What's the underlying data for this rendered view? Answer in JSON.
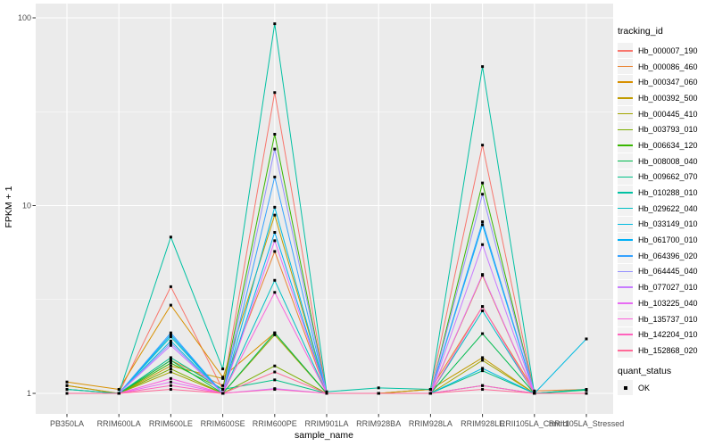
{
  "chart_data": {
    "type": "line",
    "title": "",
    "panel_background": "#EBEBEB",
    "grid_color": "#FFFFFF",
    "point_shape": "filled-square",
    "point_color": "#000000",
    "legend_position": "right",
    "x_axis": {
      "title": "sample_name",
      "categories": [
        "PB350LA",
        "RRIM600LA",
        "RRIM600LE",
        "RRIM600SE",
        "RRIM600PE",
        "RRIM901LA",
        "RRIM928BA",
        "RRIM928LA",
        "RRIM928LE",
        "RRII105LA_Control",
        "RRII105LA_Stressed"
      ]
    },
    "y_axis": {
      "title": "FPKM + 1",
      "scale": "log10",
      "ticks": [
        1,
        10,
        100
      ],
      "tick_labels": [
        "1",
        "10",
        "100"
      ],
      "minor_ticks": [
        3.162,
        31.62
      ],
      "range_approx": [
        0.78,
        119
      ]
    },
    "series": [
      {
        "name": "Hb_000007_190",
        "color": "#F8766D",
        "values": [
          1.05,
          1.0,
          3.7,
          1.05,
          40,
          1.0,
          1.0,
          1.05,
          21,
          1.0,
          1.0
        ]
      },
      {
        "name": "Hb_000086_460",
        "color": "#EA8331",
        "values": [
          1.1,
          1.0,
          1.5,
          1.1,
          5.7,
          1.0,
          1.0,
          1.05,
          2.9,
          1.03,
          1.05
        ]
      },
      {
        "name": "Hb_000347_060",
        "color": "#D89000",
        "values": [
          1.15,
          1.05,
          2.95,
          1.22,
          2.1,
          1.0,
          1.0,
          1.0,
          4.25,
          1.0,
          1.0
        ]
      },
      {
        "name": "Hb_000392_500",
        "color": "#C09B00",
        "values": [
          1.1,
          1.0,
          1.4,
          1.2,
          8.9,
          1.0,
          1.0,
          1.05,
          1.55,
          1.0,
          1.0
        ]
      },
      {
        "name": "Hb_000445_410",
        "color": "#A3A500",
        "values": [
          1.0,
          1.0,
          1.3,
          1.0,
          2.05,
          1.0,
          1.0,
          1.0,
          1.5,
          1.0,
          1.0
        ]
      },
      {
        "name": "Hb_003793_010",
        "color": "#7CAE00",
        "values": [
          1.0,
          1.0,
          1.35,
          1.0,
          1.4,
          1.0,
          1.0,
          1.0,
          1.1,
          1.0,
          1.0
        ]
      },
      {
        "name": "Hb_006634_120",
        "color": "#39B600",
        "values": [
          1.0,
          1.0,
          1.45,
          1.05,
          24,
          1.0,
          1.0,
          1.0,
          13.2,
          1.0,
          1.0
        ]
      },
      {
        "name": "Hb_008008_040",
        "color": "#00BB4E",
        "values": [
          1.0,
          1.0,
          1.5,
          1.0,
          2.1,
          1.0,
          1.0,
          1.0,
          2.08,
          1.0,
          1.04
        ]
      },
      {
        "name": "Hb_009662_070",
        "color": "#00C087",
        "values": [
          1.05,
          1.0,
          1.55,
          1.05,
          1.18,
          1.0,
          1.0,
          1.0,
          1.32,
          1.0,
          1.05
        ]
      },
      {
        "name": "Hb_010288_010",
        "color": "#00C1A3",
        "values": [
          1.05,
          1.0,
          6.8,
          1.35,
          93,
          1.02,
          1.07,
          1.05,
          55,
          1.0,
          1.05
        ]
      },
      {
        "name": "Hb_029622_040",
        "color": "#00BFC4",
        "values": [
          1.0,
          1.0,
          2.0,
          1.0,
          4.0,
          1.0,
          1.0,
          1.0,
          2.75,
          1.0,
          1.0
        ]
      },
      {
        "name": "Hb_033149_010",
        "color": "#00BAE0",
        "values": [
          1.0,
          1.0,
          1.9,
          1.0,
          9.8,
          1.0,
          1.0,
          1.0,
          1.36,
          1.0,
          1.95
        ]
      },
      {
        "name": "Hb_061700_010",
        "color": "#00B0F6",
        "values": [
          1.0,
          1.0,
          2.05,
          1.0,
          7.2,
          1.0,
          1.0,
          1.0,
          7.9,
          1.0,
          1.0
        ]
      },
      {
        "name": "Hb_064396_020",
        "color": "#35A2FF",
        "values": [
          1.0,
          1.0,
          2.1,
          1.0,
          14.2,
          1.0,
          1.0,
          1.0,
          8.2,
          1.0,
          1.0
        ]
      },
      {
        "name": "Hb_064445_040",
        "color": "#9590FF",
        "values": [
          1.0,
          1.0,
          1.85,
          1.0,
          20,
          1.0,
          1.0,
          1.0,
          11.5,
          1.0,
          1.0
        ]
      },
      {
        "name": "Hb_077027_010",
        "color": "#C77CFF",
        "values": [
          1.0,
          1.0,
          1.8,
          1.0,
          1.06,
          1.0,
          1.0,
          1.0,
          6.2,
          1.0,
          1.0
        ]
      },
      {
        "name": "Hb_103225_040",
        "color": "#E76BF3",
        "values": [
          1.0,
          1.0,
          1.15,
          1.0,
          6.5,
          1.0,
          1.0,
          1.0,
          4.3,
          1.0,
          1.0
        ]
      },
      {
        "name": "Hb_135737_010",
        "color": "#FA62DB",
        "values": [
          1.0,
          1.0,
          1.2,
          1.0,
          3.45,
          1.0,
          1.0,
          1.0,
          1.1,
          1.0,
          1.0
        ]
      },
      {
        "name": "Hb_142204_010",
        "color": "#FF62BC",
        "values": [
          1.0,
          1.0,
          1.1,
          1.0,
          1.05,
          1.0,
          1.0,
          1.0,
          2.9,
          1.0,
          1.0
        ]
      },
      {
        "name": "Hb_152868_020",
        "color": "#FF6A98",
        "values": [
          1.0,
          1.0,
          1.05,
          1.0,
          1.3,
          1.0,
          1.0,
          1.0,
          1.05,
          1.0,
          1.0
        ]
      }
    ]
  },
  "legend": {
    "title": "tracking_id"
  },
  "legend2": {
    "title": "quant_status",
    "items": [
      {
        "label": "OK"
      }
    ]
  }
}
